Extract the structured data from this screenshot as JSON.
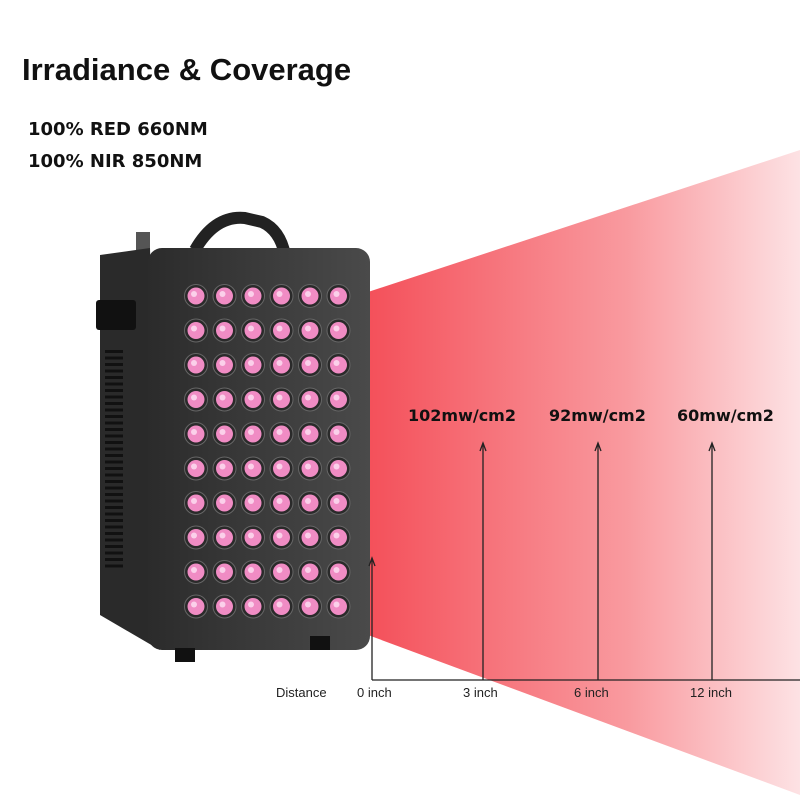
{
  "header": {
    "title": "Irradiance & Coverage",
    "specs": [
      "100% RED 660NM",
      "100% NIR 850NM"
    ]
  },
  "irradiance": [
    "102mw/cm2",
    "92mw/cm2",
    "60mw/cm2"
  ],
  "distance": {
    "label": "Distance",
    "marks": [
      "0 inch",
      "3 inch",
      "6 inch",
      "12 inch"
    ]
  }
}
